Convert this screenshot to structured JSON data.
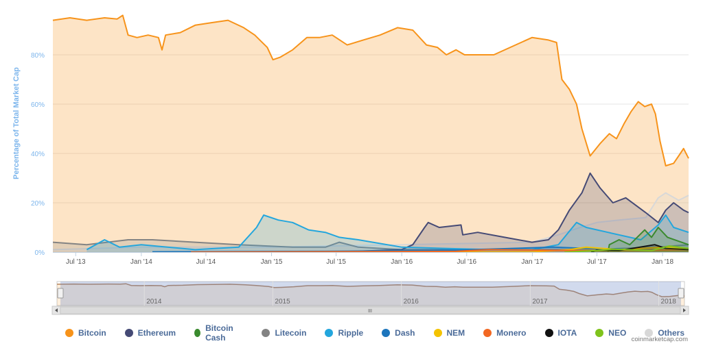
{
  "colors": {
    "Bitcoin": "#f7931a",
    "Ethereum": "#454a75",
    "Bitcoin Cash": "#3a8a2e",
    "Litecoin": "#838383",
    "Ripple": "#23a6dd",
    "Dash": "#1c75bc",
    "NEM": "#f4c300",
    "Monero": "#f26822",
    "IOTA": "#111111",
    "NEO": "#7fc31c",
    "Others": "#d8d8d8"
  },
  "credit": "coinmarketcap.com",
  "navigator": {
    "labels": [
      "2014",
      "2015",
      "2016",
      "2017",
      "2018"
    ],
    "scrollbar_grip": "III"
  },
  "chart_data": {
    "type": "area",
    "title": "",
    "ylabel": "Percentage of Total Market Cap",
    "xlabel": "",
    "ylim": [
      0,
      100
    ],
    "x_range": [
      "2013-04-28",
      "2018-03-15"
    ],
    "y_ticks": [
      "0%",
      "20%",
      "40%",
      "60%",
      "80%"
    ],
    "x_ticks": [
      "Jul '13",
      "Jan '14",
      "Jul '14",
      "Jan '15",
      "Jul '15",
      "Jan '16",
      "Jul '16",
      "Jan '17",
      "Jul '17",
      "Jan '18"
    ],
    "grid": true,
    "legend_position": "bottom",
    "series": [
      {
        "name": "Bitcoin",
        "points": [
          [
            "2013-04-28",
            94
          ],
          [
            "2013-06-15",
            95
          ],
          [
            "2013-08-01",
            94
          ],
          [
            "2013-09-20",
            95
          ],
          [
            "2013-10-25",
            94.5
          ],
          [
            "2013-11-10",
            96
          ],
          [
            "2013-11-25",
            88
          ],
          [
            "2013-12-20",
            87
          ],
          [
            "2014-01-20",
            88
          ],
          [
            "2014-02-18",
            87
          ],
          [
            "2014-02-28",
            82
          ],
          [
            "2014-03-10",
            88
          ],
          [
            "2014-04-20",
            89
          ],
          [
            "2014-06-01",
            92
          ],
          [
            "2014-07-15",
            93
          ],
          [
            "2014-09-01",
            94
          ],
          [
            "2014-10-15",
            91
          ],
          [
            "2014-11-15",
            88
          ],
          [
            "2014-12-20",
            83
          ],
          [
            "2015-01-05",
            78
          ],
          [
            "2015-01-25",
            79
          ],
          [
            "2015-03-01",
            82
          ],
          [
            "2015-04-10",
            87
          ],
          [
            "2015-05-15",
            87
          ],
          [
            "2015-06-20",
            88
          ],
          [
            "2015-08-01",
            84
          ],
          [
            "2015-09-15",
            86
          ],
          [
            "2015-11-01",
            88
          ],
          [
            "2015-12-20",
            91
          ],
          [
            "2016-02-01",
            90
          ],
          [
            "2016-03-10",
            84
          ],
          [
            "2016-04-10",
            83
          ],
          [
            "2016-05-05",
            80
          ],
          [
            "2016-06-01",
            82
          ],
          [
            "2016-06-25",
            80
          ],
          [
            "2016-08-01",
            80
          ],
          [
            "2016-09-15",
            80
          ],
          [
            "2016-11-15",
            84
          ],
          [
            "2016-12-31",
            87
          ],
          [
            "2017-02-15",
            86
          ],
          [
            "2017-03-10",
            85
          ],
          [
            "2017-03-25",
            70
          ],
          [
            "2017-04-15",
            66
          ],
          [
            "2017-05-05",
            60
          ],
          [
            "2017-05-20",
            50
          ],
          [
            "2017-06-12",
            39
          ],
          [
            "2017-07-10",
            44
          ],
          [
            "2017-08-05",
            48
          ],
          [
            "2017-08-25",
            46
          ],
          [
            "2017-09-15",
            52
          ],
          [
            "2017-10-05",
            57
          ],
          [
            "2017-10-25",
            61
          ],
          [
            "2017-11-12",
            59
          ],
          [
            "2017-12-01",
            60
          ],
          [
            "2017-12-12",
            56
          ],
          [
            "2017-12-25",
            45
          ],
          [
            "2018-01-10",
            35
          ],
          [
            "2018-02-01",
            36
          ],
          [
            "2018-02-20",
            40
          ],
          [
            "2018-03-01",
            42
          ],
          [
            "2018-03-15",
            38
          ]
        ]
      },
      {
        "name": "Ethereum",
        "points": [
          [
            "2015-08-07",
            0.2
          ],
          [
            "2015-12-31",
            1
          ],
          [
            "2016-02-01",
            3
          ],
          [
            "2016-03-05",
            10
          ],
          [
            "2016-03-15",
            12
          ],
          [
            "2016-04-15",
            10
          ],
          [
            "2016-06-15",
            11
          ],
          [
            "2016-06-20",
            7
          ],
          [
            "2016-08-01",
            8
          ],
          [
            "2016-10-15",
            6
          ],
          [
            "2016-12-31",
            4
          ],
          [
            "2017-02-15",
            5
          ],
          [
            "2017-03-15",
            9
          ],
          [
            "2017-04-15",
            17
          ],
          [
            "2017-05-20",
            24
          ],
          [
            "2017-06-12",
            32
          ],
          [
            "2017-07-10",
            26
          ],
          [
            "2017-08-15",
            20
          ],
          [
            "2017-09-20",
            22
          ],
          [
            "2017-11-15",
            16
          ],
          [
            "2017-12-20",
            12
          ],
          [
            "2018-01-10",
            17
          ],
          [
            "2018-02-01",
            20
          ],
          [
            "2018-03-01",
            17
          ],
          [
            "2018-03-15",
            16
          ]
        ]
      },
      {
        "name": "Bitcoin Cash",
        "points": [
          [
            "2017-08-01",
            0
          ],
          [
            "2017-08-05",
            3
          ],
          [
            "2017-09-01",
            5
          ],
          [
            "2017-10-01",
            3
          ],
          [
            "2017-11-12",
            9
          ],
          [
            "2017-12-01",
            6
          ],
          [
            "2017-12-20",
            10
          ],
          [
            "2018-01-15",
            6
          ],
          [
            "2018-03-15",
            3
          ]
        ]
      },
      {
        "name": "Litecoin",
        "points": [
          [
            "2013-04-28",
            4
          ],
          [
            "2013-08-01",
            3
          ],
          [
            "2013-11-25",
            5
          ],
          [
            "2014-02-01",
            5
          ],
          [
            "2014-06-01",
            4
          ],
          [
            "2014-10-01",
            3
          ],
          [
            "2015-03-01",
            2
          ],
          [
            "2015-06-01",
            2
          ],
          [
            "2015-07-10",
            4
          ],
          [
            "2015-09-01",
            2
          ],
          [
            "2016-01-01",
            1
          ],
          [
            "2016-12-31",
            1
          ],
          [
            "2017-03-15",
            1
          ],
          [
            "2017-06-01",
            1
          ],
          [
            "2017-12-20",
            2
          ],
          [
            "2018-03-15",
            3
          ]
        ]
      },
      {
        "name": "Ripple",
        "points": [
          [
            "2013-08-01",
            1
          ],
          [
            "2013-09-20",
            5
          ],
          [
            "2013-11-01",
            2
          ],
          [
            "2014-01-01",
            3
          ],
          [
            "2014-06-01",
            1
          ],
          [
            "2014-10-01",
            2
          ],
          [
            "2014-11-20",
            10
          ],
          [
            "2014-12-10",
            15
          ],
          [
            "2015-01-20",
            13
          ],
          [
            "2015-03-01",
            12
          ],
          [
            "2015-04-15",
            9
          ],
          [
            "2015-06-01",
            8
          ],
          [
            "2015-07-10",
            6
          ],
          [
            "2015-09-01",
            5
          ],
          [
            "2016-01-01",
            2
          ],
          [
            "2016-09-01",
            1
          ],
          [
            "2016-12-31",
            1
          ],
          [
            "2017-03-15",
            3
          ],
          [
            "2017-05-05",
            12
          ],
          [
            "2017-06-01",
            10
          ],
          [
            "2017-08-01",
            8
          ],
          [
            "2017-11-01",
            5
          ],
          [
            "2017-12-20",
            11
          ],
          [
            "2018-01-10",
            15
          ],
          [
            "2018-02-01",
            10
          ],
          [
            "2018-03-15",
            8
          ]
        ]
      },
      {
        "name": "Dash",
        "points": [
          [
            "2014-02-01",
            0.1
          ],
          [
            "2015-06-01",
            0.3
          ],
          [
            "2016-06-01",
            0.8
          ],
          [
            "2017-03-01",
            2
          ],
          [
            "2017-06-01",
            1.5
          ],
          [
            "2017-12-01",
            1
          ],
          [
            "2018-03-15",
            1
          ]
        ]
      },
      {
        "name": "NEM",
        "points": [
          [
            "2015-04-01",
            0
          ],
          [
            "2016-12-31",
            0.1
          ],
          [
            "2017-04-15",
            1
          ],
          [
            "2017-06-01",
            2
          ],
          [
            "2017-09-01",
            1
          ],
          [
            "2018-01-10",
            2
          ],
          [
            "2018-03-15",
            1
          ]
        ]
      },
      {
        "name": "Monero",
        "points": [
          [
            "2014-05-20",
            0
          ],
          [
            "2016-06-01",
            0.3
          ],
          [
            "2016-09-01",
            1
          ],
          [
            "2017-01-15",
            0.8
          ],
          [
            "2017-06-01",
            0.6
          ],
          [
            "2017-12-01",
            0.8
          ],
          [
            "2018-03-15",
            1
          ]
        ]
      },
      {
        "name": "IOTA",
        "points": [
          [
            "2017-06-15",
            0
          ],
          [
            "2017-07-01",
            0.8
          ],
          [
            "2017-09-01",
            0.6
          ],
          [
            "2017-12-10",
            3
          ],
          [
            "2018-01-10",
            1.5
          ],
          [
            "2018-03-15",
            1
          ]
        ]
      },
      {
        "name": "NEO",
        "points": [
          [
            "2017-04-01",
            0
          ],
          [
            "2017-07-01",
            0.6
          ],
          [
            "2017-08-15",
            1.2
          ],
          [
            "2017-12-01",
            0.6
          ],
          [
            "2018-01-20",
            2.5
          ],
          [
            "2018-03-15",
            1.5
          ]
        ]
      },
      {
        "name": "Others",
        "points": [
          [
            "2013-04-28",
            1
          ],
          [
            "2014-01-01",
            2
          ],
          [
            "2015-01-01",
            2
          ],
          [
            "2016-01-01",
            3
          ],
          [
            "2016-12-31",
            4
          ],
          [
            "2017-03-15",
            7
          ],
          [
            "2017-05-15",
            10
          ],
          [
            "2017-07-01",
            12
          ],
          [
            "2017-09-01",
            13
          ],
          [
            "2017-11-15",
            14
          ],
          [
            "2017-12-20",
            22
          ],
          [
            "2018-01-10",
            24
          ],
          [
            "2018-02-15",
            21
          ],
          [
            "2018-03-15",
            23
          ]
        ]
      }
    ]
  }
}
